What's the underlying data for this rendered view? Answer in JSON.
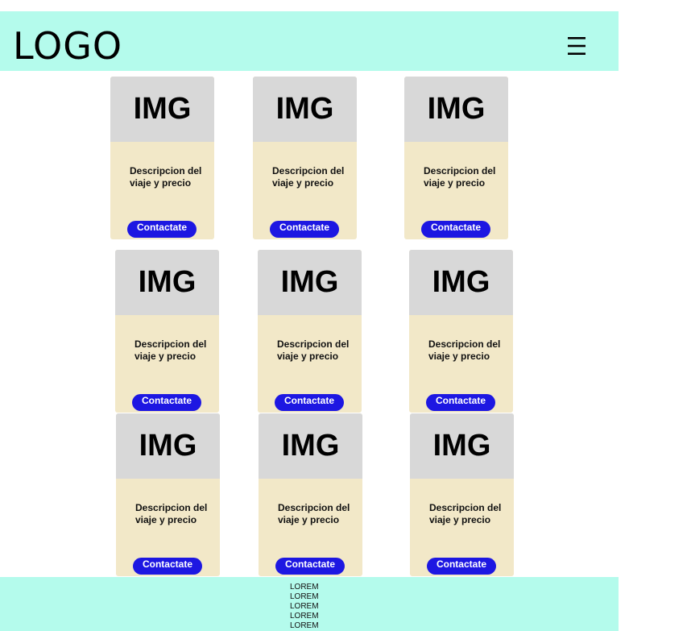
{
  "header": {
    "logo": "LOGO",
    "menu_icon": "hamburger-menu-icon"
  },
  "cards": [
    {
      "image_label": "IMG",
      "description": "Descripcion del viaje y precio",
      "button_label": "Contactate"
    },
    {
      "image_label": "IMG",
      "description": "Descripcion del viaje y precio",
      "button_label": "Contactate"
    },
    {
      "image_label": "IMG",
      "description": "Descripcion del viaje y precio",
      "button_label": "Contactate"
    },
    {
      "image_label": "IMG",
      "description": "Descripcion del viaje y precio",
      "button_label": "Contactate"
    },
    {
      "image_label": "IMG",
      "description": "Descripcion del viaje y precio",
      "button_label": "Contactate"
    },
    {
      "image_label": "IMG",
      "description": "Descripcion del viaje y precio",
      "button_label": "Contactate"
    },
    {
      "image_label": "IMG",
      "description": "Descripcion del viaje y precio",
      "button_label": "Contactate"
    },
    {
      "image_label": "IMG",
      "description": "Descripcion del viaje y precio",
      "button_label": "Contactate"
    },
    {
      "image_label": "IMG",
      "description": "Descripcion del viaje y precio",
      "button_label": "Contactate"
    }
  ],
  "footer": {
    "lines": [
      "LOREM",
      "LOREM",
      "LOREM",
      "LOREM",
      "LOREM"
    ]
  },
  "colors": {
    "header_footer_bg": "#b4fbec",
    "card_bg": "#f2e8c8",
    "image_placeholder": "#d8d8d8",
    "button_bg": "#1d17e2"
  }
}
